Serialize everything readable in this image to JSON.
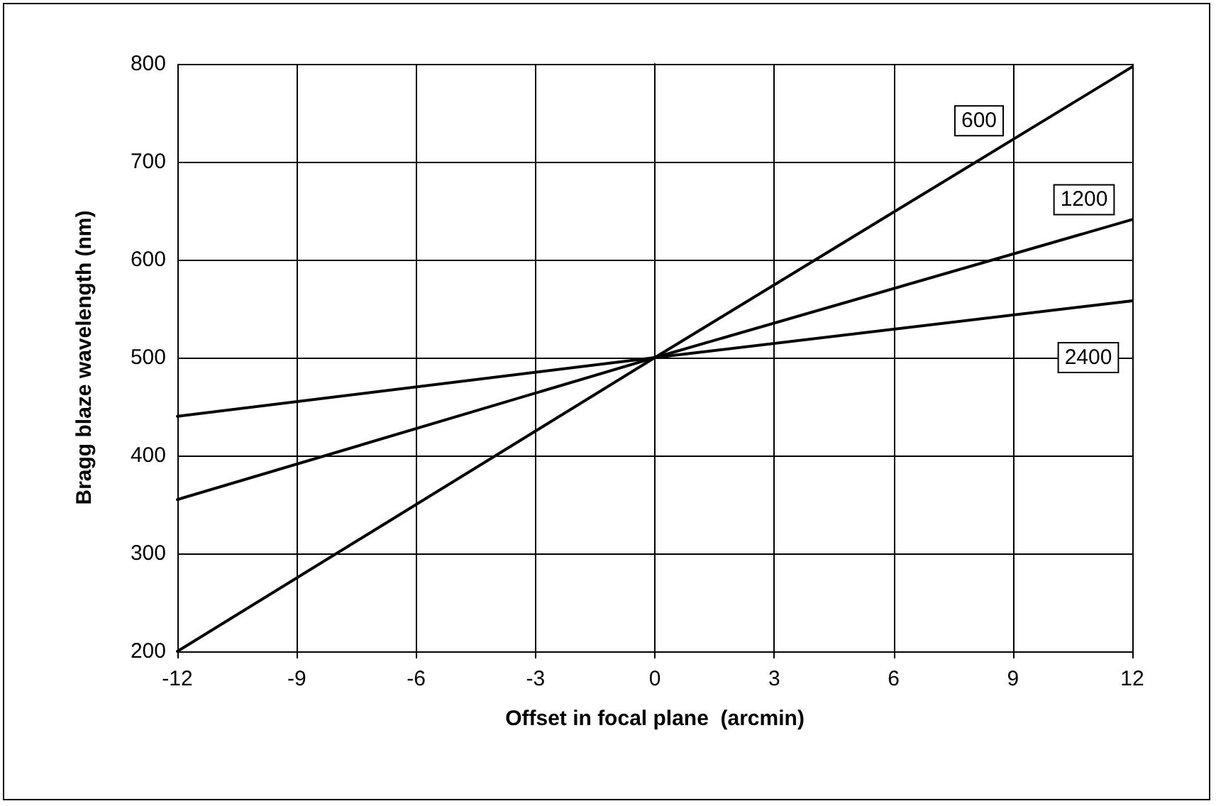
{
  "chart_data": {
    "type": "line",
    "xlabel": "Offset in focal plane  (arcmin)",
    "ylabel": "Bragg blaze wavelength (nm)",
    "x": [
      -12,
      0,
      12
    ],
    "series": [
      {
        "name": "600",
        "color": "#000000",
        "values": [
          200,
          500,
          797
        ]
      },
      {
        "name": "1200",
        "color": "#000000",
        "values": [
          355,
          500,
          641
        ]
      },
      {
        "name": "2400",
        "color": "#000000",
        "values": [
          440,
          500,
          558
        ]
      }
    ],
    "xlim": [
      -12,
      12
    ],
    "xticks": [
      -12,
      -9,
      -6,
      -3,
      0,
      3,
      6,
      9,
      12
    ],
    "ylim": [
      200,
      800
    ],
    "yticks": [
      200,
      300,
      400,
      500,
      600,
      700,
      800
    ],
    "grid": true,
    "legend": false,
    "marker": "none",
    "line_style": "solid"
  }
}
